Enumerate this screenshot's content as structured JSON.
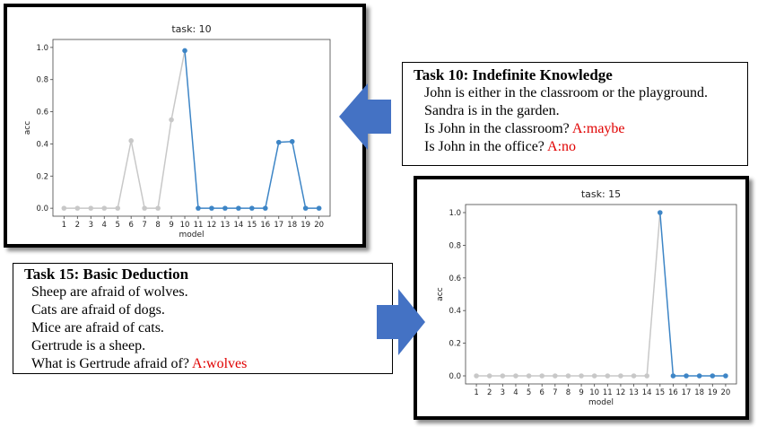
{
  "chart_data": [
    {
      "type": "line",
      "title": "task: 10",
      "xlabel": "model",
      "ylabel": "acc",
      "x": [
        1,
        2,
        3,
        4,
        5,
        6,
        7,
        8,
        9,
        10,
        11,
        12,
        13,
        14,
        15,
        16,
        17,
        18,
        19,
        20
      ],
      "values": [
        0,
        0,
        0,
        0,
        0,
        0.42,
        0,
        0,
        0.55,
        0.98,
        0,
        0,
        0,
        0,
        0,
        0,
        0.41,
        0.415,
        0,
        0
      ],
      "highlight_from": 10,
      "ylim": [
        0,
        1.0
      ],
      "yticks": [
        "0.0",
        "0.2",
        "0.4",
        "0.6",
        "0.8",
        "1.0"
      ],
      "colors": {
        "muted": "#c8c8c8",
        "accent": "#3d85c6"
      }
    },
    {
      "type": "line",
      "title": "task: 15",
      "xlabel": "model",
      "ylabel": "acc",
      "x": [
        1,
        2,
        3,
        4,
        5,
        6,
        7,
        8,
        9,
        10,
        11,
        12,
        13,
        14,
        15,
        16,
        17,
        18,
        19,
        20
      ],
      "values": [
        0,
        0,
        0,
        0,
        0,
        0,
        0,
        0,
        0,
        0,
        0,
        0,
        0,
        0,
        1.0,
        0,
        0,
        0,
        0,
        0
      ],
      "highlight_from": 15,
      "ylim": [
        0,
        1.0
      ],
      "yticks": [
        "0.0",
        "0.2",
        "0.4",
        "0.6",
        "0.8",
        "1.0"
      ],
      "colors": {
        "muted": "#c8c8c8",
        "accent": "#3d85c6"
      }
    }
  ],
  "task10_box": {
    "heading": "Task 10: Indefinite Knowledge",
    "lines": [
      {
        "text": "John is either in the classroom or the playground.",
        "answer": ""
      },
      {
        "text": "Sandra is in the garden.",
        "answer": ""
      },
      {
        "text": "Is John in the classroom?",
        "answer": "A:maybe"
      },
      {
        "text": "Is John in the office?",
        "answer": "A:no"
      }
    ]
  },
  "task15_box": {
    "heading": "Task 15: Basic Deduction",
    "lines": [
      {
        "text": "Sheep are afraid of wolves.",
        "answer": ""
      },
      {
        "text": "Cats are afraid of dogs.",
        "answer": ""
      },
      {
        "text": "Mice are afraid of cats.",
        "answer": ""
      },
      {
        "text": "Gertrude is a sheep.",
        "answer": ""
      },
      {
        "text": "What is Gertrude afraid of?",
        "answer": "A:wolves"
      }
    ]
  },
  "colors": {
    "arrow": "#4472c4",
    "answer": "#e00000"
  }
}
